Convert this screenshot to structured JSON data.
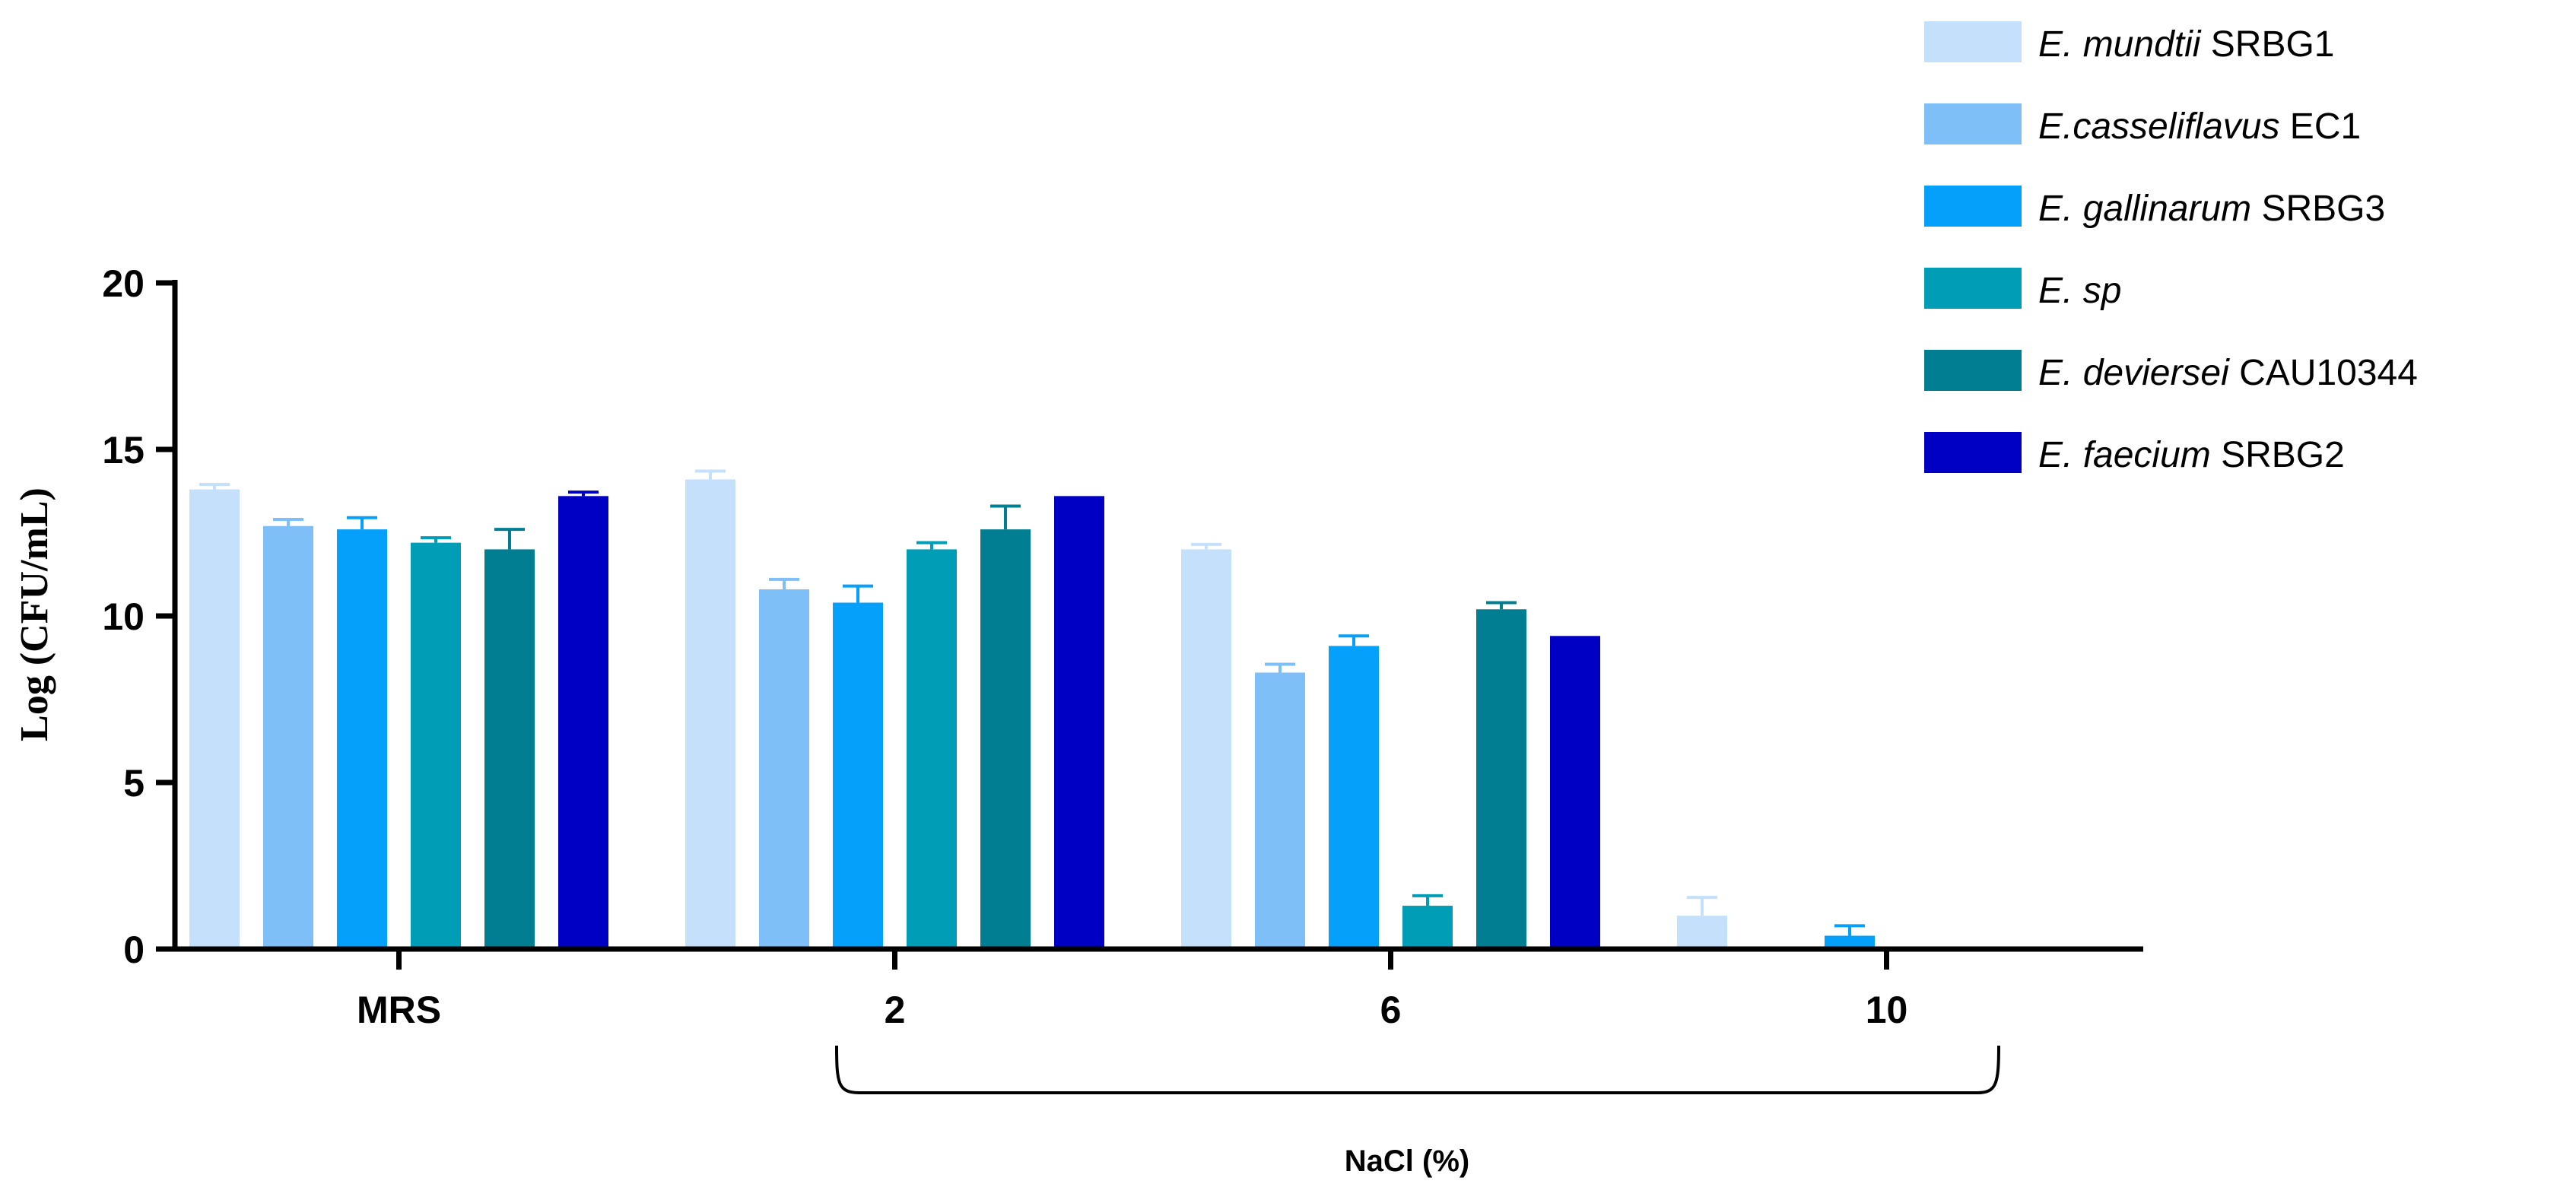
{
  "chart_data": {
    "type": "bar",
    "categories": [
      "MRS",
      "2",
      "6",
      "10"
    ],
    "ylabel": "Log (CFU/mL)",
    "group_label": "NaCl (%)",
    "ylim": [
      0,
      20
    ],
    "yticks": [
      0,
      5,
      10,
      15,
      20
    ],
    "legend_position": "top-right",
    "series": [
      {
        "name_italic": "E. mundtii",
        "name_plain": " SRBG1",
        "color": "#c5e0fa",
        "values": [
          13.8,
          14.1,
          12.0,
          1.0
        ],
        "errors": [
          0.15,
          0.25,
          0.15,
          0.55
        ]
      },
      {
        "name_italic": "E.casseliflavus",
        "name_plain": " EC1",
        "color": "#7fbff7",
        "values": [
          12.7,
          10.8,
          8.3,
          0.0
        ],
        "errors": [
          0.2,
          0.3,
          0.25,
          0.0
        ]
      },
      {
        "name_italic": "E. gallinarum",
        "name_plain": " SRBG3",
        "color": "#05a0fa",
        "values": [
          12.6,
          10.4,
          9.1,
          0.4
        ],
        "errors": [
          0.35,
          0.5,
          0.3,
          0.3
        ]
      },
      {
        "name_italic": "E. sp",
        "name_plain": "",
        "color": "#009db7",
        "values": [
          12.2,
          12.0,
          1.3,
          0.0
        ],
        "errors": [
          0.15,
          0.2,
          0.3,
          0.0
        ]
      },
      {
        "name_italic": "E. deviersei",
        "name_plain": " CAU10344",
        "color": "#017e91",
        "values": [
          12.0,
          12.6,
          10.2,
          0.0
        ],
        "errors": [
          0.6,
          0.7,
          0.2,
          0.0
        ]
      },
      {
        "name_italic": "E. faecium",
        "name_plain": " SRBG2",
        "color": "#0000c4",
        "values": [
          13.6,
          13.6,
          9.4,
          0.0
        ],
        "errors": [
          0.12,
          0.0,
          0.0,
          0.0
        ]
      }
    ]
  }
}
